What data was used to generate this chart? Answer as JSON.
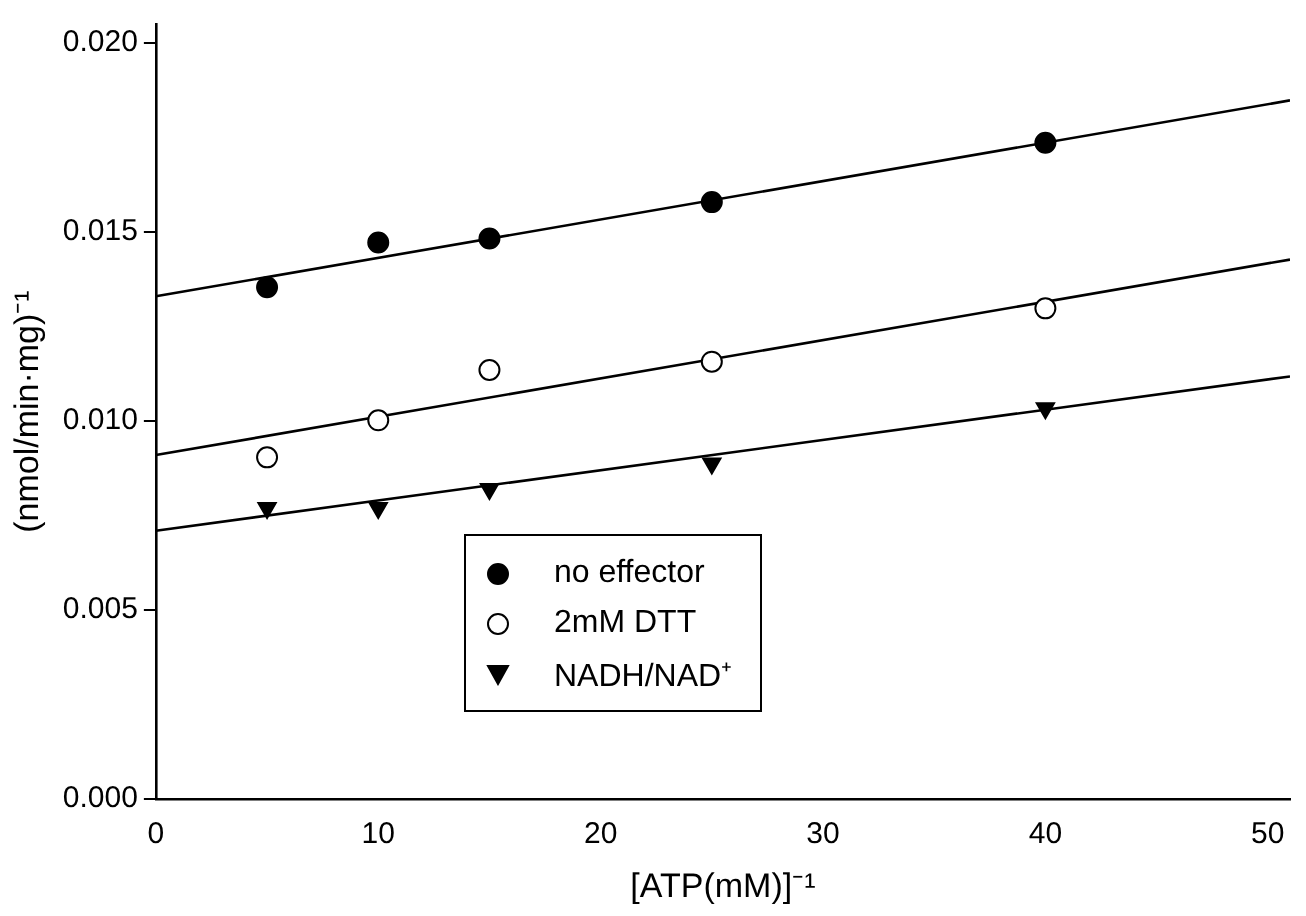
{
  "chart_data": {
    "type": "scatter",
    "xlabel": "[ATP(mM)]⁻¹",
    "ylabel": "(nmol/min·mg)⁻¹",
    "xlim": [
      0,
      51
    ],
    "xticks": [
      0,
      10,
      20,
      30,
      40,
      50
    ],
    "ylim": [
      0,
      0.0205
    ],
    "yticks": [
      {
        "value": 0,
        "label": "0.000"
      },
      0.005,
      {
        "value": 0.01,
        "label": "0.010"
      },
      0.015,
      {
        "value": 0.02,
        "label": "0.020"
      }
    ],
    "grid": false,
    "legend": "bottom",
    "series": [
      {
        "name": "no effector",
        "color": "#000000",
        "marker": "circle",
        "x": [
          5,
          10,
          15,
          25,
          40
        ],
        "values": [
          0.01354,
          0.01472,
          0.01483,
          0.01579,
          0.01736
        ]
      },
      {
        "name": "2mM DTT",
        "color": "#ffffff",
        "marker": "circle",
        "x": [
          5,
          10,
          15,
          25,
          40
        ],
        "values": [
          0.00904,
          0.01002,
          0.01135,
          0.01157,
          0.01298
        ]
      },
      {
        "name": "NADH/NAD⁺",
        "color": "#000000",
        "marker": "triangle",
        "x": [
          5,
          10,
          15,
          25,
          40
        ],
        "values": [
          0.0077,
          0.0077,
          0.0082,
          0.00888,
          0.01034
        ]
      },
      {
        "type": "line",
        "color": "#000000",
        "marker": "none",
        "x": [
          0,
          51
        ],
        "values": [
          0.0133,
          0.01848
        ]
      },
      {
        "type": "line",
        "color": "#000000",
        "marker": "none",
        "x": [
          0,
          51
        ],
        "values": [
          0.0091,
          0.01427
        ]
      },
      {
        "type": "line",
        "color": "#000000",
        "marker": "none",
        "x": [
          0,
          51
        ],
        "values": [
          0.0071,
          0.01118
        ]
      }
    ]
  }
}
